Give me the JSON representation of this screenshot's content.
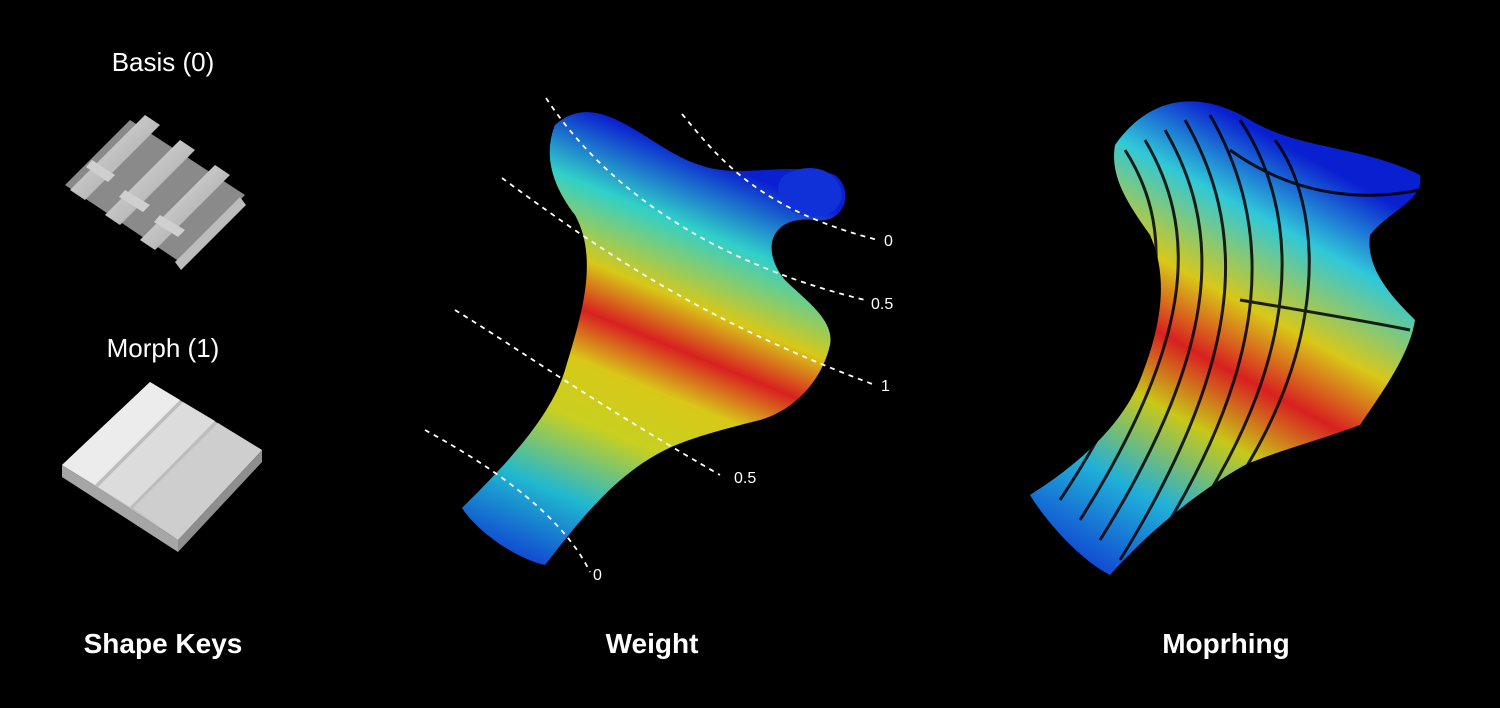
{
  "shape_keys": {
    "basis_label": "Basis (0)",
    "morph_label": "Morph (1)",
    "title": "Shape Keys"
  },
  "weight": {
    "title": "Weight",
    "levels": [
      "0",
      "0.5",
      "1",
      "0.5",
      "0"
    ]
  },
  "morphing": {
    "title": "Moprhing"
  },
  "colors": {
    "background": "#000000",
    "blue": "#0a1fd0",
    "cyan": "#20c8d8",
    "yellow": "#d8d020",
    "red": "#d81818"
  }
}
